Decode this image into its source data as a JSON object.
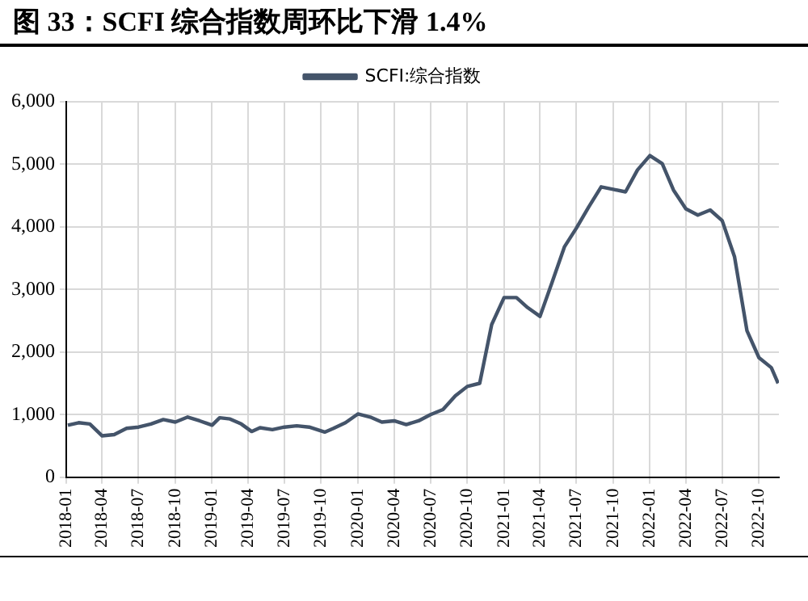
{
  "chart_data": {
    "type": "line",
    "title": "图 33：SCFI 综合指数周环比下滑 1.4%",
    "series": [
      {
        "name": "SCFI:综合指数",
        "color": "#44546a",
        "x": [
          "2018-01-05",
          "2018-02-01",
          "2018-03-01",
          "2018-04-01",
          "2018-05-01",
          "2018-06-01",
          "2018-07-01",
          "2018-08-01",
          "2018-09-01",
          "2018-10-01",
          "2018-11-01",
          "2018-12-01",
          "2019-01-01",
          "2019-01-20",
          "2019-02-15",
          "2019-03-15",
          "2019-04-10",
          "2019-05-01",
          "2019-06-01",
          "2019-07-01",
          "2019-08-01",
          "2019-09-01",
          "2019-10-10",
          "2019-11-01",
          "2019-12-01",
          "2020-01-01",
          "2020-02-01",
          "2020-03-01",
          "2020-04-01",
          "2020-05-01",
          "2020-06-01",
          "2020-07-01",
          "2020-08-01",
          "2020-09-01",
          "2020-10-01",
          "2020-11-01",
          "2020-12-01",
          "2021-01-01",
          "2021-02-01",
          "2021-03-01",
          "2021-04-01",
          "2021-05-01",
          "2021-06-01",
          "2021-07-01",
          "2021-08-01",
          "2021-09-01",
          "2021-10-01",
          "2021-11-01",
          "2021-12-01",
          "2022-01-01",
          "2022-02-01",
          "2022-03-01",
          "2022-04-01",
          "2022-05-01",
          "2022-06-01",
          "2022-07-01",
          "2022-08-01",
          "2022-09-01",
          "2022-10-01",
          "2022-11-01",
          "2022-11-18"
        ],
        "values": [
          830,
          870,
          850,
          660,
          680,
          780,
          800,
          850,
          920,
          880,
          960,
          900,
          830,
          950,
          930,
          850,
          730,
          790,
          760,
          800,
          820,
          800,
          720,
          780,
          870,
          1010,
          960,
          880,
          900,
          840,
          900,
          1000,
          1080,
          1300,
          1450,
          1500,
          2440,
          2870,
          2870,
          2710,
          2570,
          3110,
          3680,
          3980,
          4320,
          4640,
          4600,
          4560,
          4910,
          5140,
          5010,
          4590,
          4290,
          4190,
          4270,
          4100,
          3520,
          2340,
          1910,
          1750,
          1500
        ]
      }
    ],
    "xlim": [
      "2018-01-01",
      "2022-11-20"
    ],
    "xticks": [
      "2018-01",
      "2018-04",
      "2018-07",
      "2018-10",
      "2019-01",
      "2019-04",
      "2019-07",
      "2019-10",
      "2020-01",
      "2020-04",
      "2020-07",
      "2020-10",
      "2021-01",
      "2021-04",
      "2021-07",
      "2021-10",
      "2022-01",
      "2022-04",
      "2022-07",
      "2022-10"
    ],
    "ylim": [
      0,
      6000
    ],
    "yticks": [
      {
        "value": 0,
        "label": "0"
      },
      {
        "value": 1000,
        "label": "1,000"
      },
      {
        "value": 2000,
        "label": "2,000"
      },
      {
        "value": 3000,
        "label": "3,000"
      },
      {
        "value": 4000,
        "label": "4,000"
      },
      {
        "value": 5000,
        "label": "5,000"
      },
      {
        "value": 6000,
        "label": "6,000"
      }
    ],
    "grid": true,
    "legend": "top",
    "marker": "none",
    "line_style": "solid"
  }
}
